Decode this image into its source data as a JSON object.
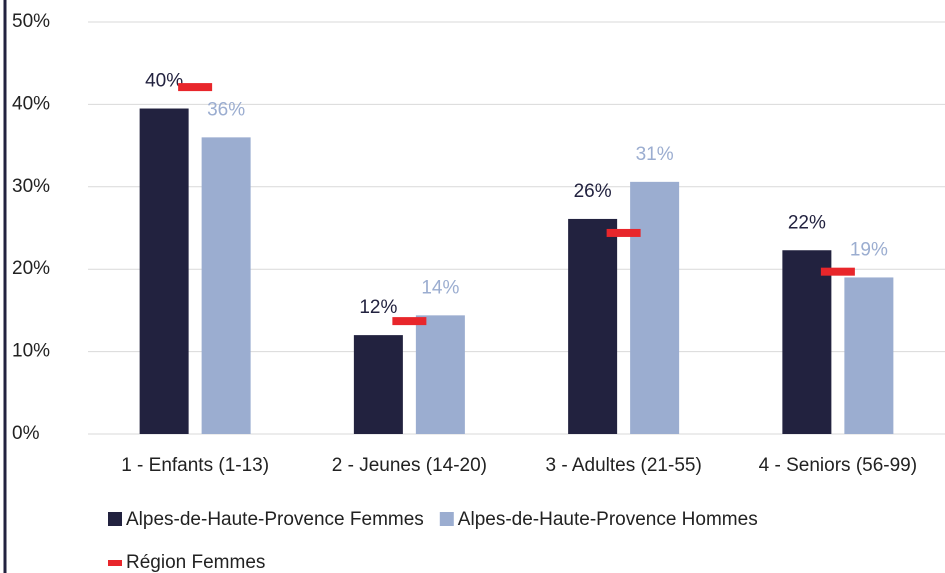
{
  "chart_data": {
    "type": "bar",
    "categories": [
      "1 - Enfants (1-13)",
      "2 - Jeunes (14-20)",
      "3 - Adultes (21-55)",
      "4 - Seniors (56-99)"
    ],
    "series": [
      {
        "name": "Alpes-de-Haute-Provence Femmes",
        "color": "#22223f",
        "label_color": "#22223f",
        "values": [
          39.5,
          12,
          26.1,
          22.3
        ],
        "value_labels": [
          "40%",
          "12%",
          "26%",
          "22%"
        ]
      },
      {
        "name": "Alpes-de-Haute-Provence Hommes",
        "color": "#9badd0",
        "label_color": "#9badd0",
        "values": [
          36,
          14.4,
          30.6,
          19
        ],
        "value_labels": [
          "36%",
          "14%",
          "31%",
          "19%"
        ]
      },
      {
        "name": "Région Femmes",
        "color": "#e8262b",
        "style": "dash",
        "values": [
          42.1,
          13.7,
          24.4,
          19.7
        ]
      }
    ],
    "ylim": [
      0,
      50
    ],
    "yticks": [
      {
        "value": 0,
        "label": "0%"
      },
      {
        "value": 10,
        "label": "10%"
      },
      {
        "value": 20,
        "label": "20%"
      },
      {
        "value": 30,
        "label": "30%"
      },
      {
        "value": 40,
        "label": "40%"
      },
      {
        "value": 50,
        "label": "50%"
      }
    ],
    "grid": true
  }
}
